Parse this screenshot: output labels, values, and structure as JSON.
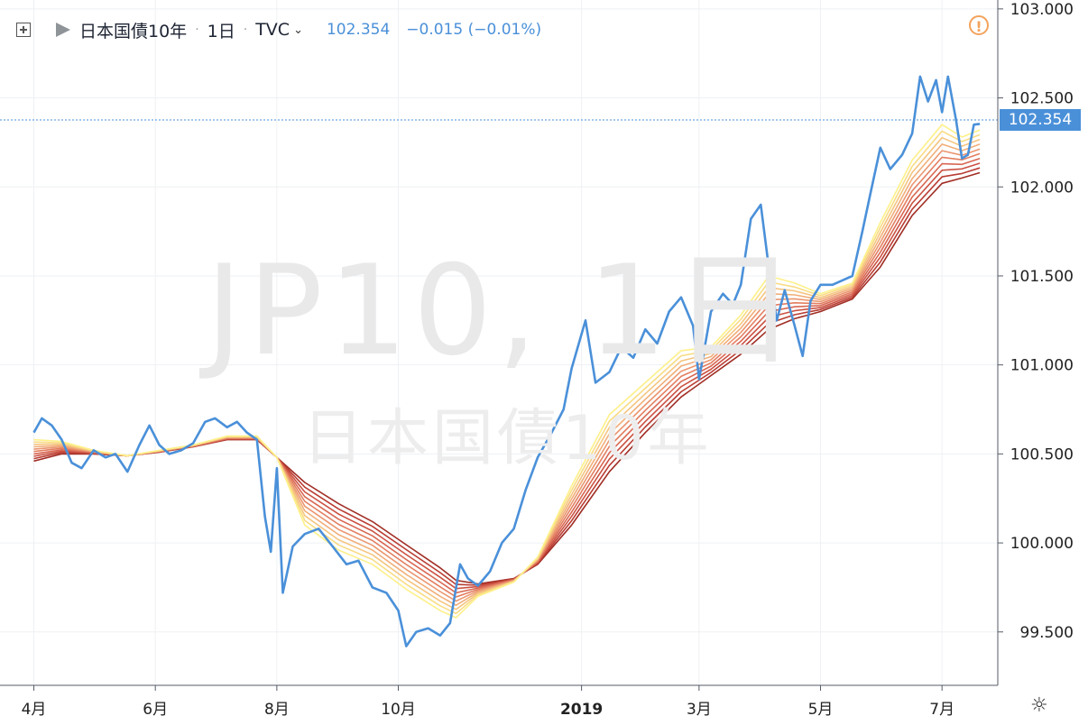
{
  "legend": {
    "symbol": "日本国債10年",
    "interval": "1日",
    "source": "TVC",
    "last": "102.354",
    "change": "−0.015 (−0.01%)",
    "add_icon": "plus-square-icon",
    "flag_icon": "flag-icon",
    "chevron_icon": "chevron-down-icon"
  },
  "watermark": {
    "line1": "JP10, 1日",
    "line2": "日本国債10年"
  },
  "warning_icon": {
    "name": "alert-circle-icon",
    "glyph": "!"
  },
  "settings_icon": {
    "name": "gear-icon",
    "glyph": "☼"
  },
  "last_price_label": "102.354",
  "colors": {
    "price_line": "#4a90d9",
    "grid": "#eef1f4",
    "axis": "#555b66",
    "ribbon": [
      "#fdf08a",
      "#f9dc84",
      "#f5c581",
      "#f1ae79",
      "#eb9670",
      "#e37e60",
      "#d86752",
      "#cb5243",
      "#b93d33",
      "#a02d24"
    ]
  },
  "chart_data": {
    "type": "line",
    "title": "",
    "xlabel": "",
    "ylabel": "",
    "ylim": [
      99.2,
      103.05
    ],
    "y_ticks": [
      "103.000",
      "102.500",
      "102.000",
      "101.500",
      "101.000",
      "100.500",
      "100.000",
      "99.500"
    ],
    "x_ticks": [
      "4月",
      "6月",
      "8月",
      "10月",
      "2019",
      "3月",
      "5月",
      "7月"
    ],
    "grid": true,
    "series": [
      {
        "name": "",
        "role": "price",
        "values": [
          {
            "x": "2018-04-01",
            "y": 100.62
          },
          {
            "x": "2018-04-05",
            "y": 100.7
          },
          {
            "x": "2018-04-10",
            "y": 100.66
          },
          {
            "x": "2018-04-15",
            "y": 100.58
          },
          {
            "x": "2018-04-20",
            "y": 100.45
          },
          {
            "x": "2018-04-25",
            "y": 100.42
          },
          {
            "x": "2018-05-01",
            "y": 100.52
          },
          {
            "x": "2018-05-07",
            "y": 100.48
          },
          {
            "x": "2018-05-12",
            "y": 100.5
          },
          {
            "x": "2018-05-18",
            "y": 100.4
          },
          {
            "x": "2018-05-24",
            "y": 100.55
          },
          {
            "x": "2018-05-29",
            "y": 100.66
          },
          {
            "x": "2018-06-03",
            "y": 100.55
          },
          {
            "x": "2018-06-08",
            "y": 100.5
          },
          {
            "x": "2018-06-14",
            "y": 100.52
          },
          {
            "x": "2018-06-20",
            "y": 100.56
          },
          {
            "x": "2018-06-26",
            "y": 100.68
          },
          {
            "x": "2018-07-01",
            "y": 100.7
          },
          {
            "x": "2018-07-07",
            "y": 100.65
          },
          {
            "x": "2018-07-12",
            "y": 100.68
          },
          {
            "x": "2018-07-17",
            "y": 100.62
          },
          {
            "x": "2018-07-22",
            "y": 100.58
          },
          {
            "x": "2018-07-26",
            "y": 100.15
          },
          {
            "x": "2018-07-29",
            "y": 99.95
          },
          {
            "x": "2018-08-01",
            "y": 100.42
          },
          {
            "x": "2018-08-04",
            "y": 99.72
          },
          {
            "x": "2018-08-09",
            "y": 99.98
          },
          {
            "x": "2018-08-15",
            "y": 100.05
          },
          {
            "x": "2018-08-22",
            "y": 100.08
          },
          {
            "x": "2018-08-29",
            "y": 99.98
          },
          {
            "x": "2018-09-05",
            "y": 99.88
          },
          {
            "x": "2018-09-11",
            "y": 99.9
          },
          {
            "x": "2018-09-18",
            "y": 99.75
          },
          {
            "x": "2018-09-25",
            "y": 99.72
          },
          {
            "x": "2018-10-01",
            "y": 99.62
          },
          {
            "x": "2018-10-05",
            "y": 99.42
          },
          {
            "x": "2018-10-10",
            "y": 99.5
          },
          {
            "x": "2018-10-16",
            "y": 99.52
          },
          {
            "x": "2018-10-22",
            "y": 99.48
          },
          {
            "x": "2018-10-27",
            "y": 99.55
          },
          {
            "x": "2018-11-01",
            "y": 99.88
          },
          {
            "x": "2018-11-05",
            "y": 99.8
          },
          {
            "x": "2018-11-10",
            "y": 99.76
          },
          {
            "x": "2018-11-16",
            "y": 99.84
          },
          {
            "x": "2018-11-22",
            "y": 100.0
          },
          {
            "x": "2018-11-28",
            "y": 100.08
          },
          {
            "x": "2018-12-04",
            "y": 100.3
          },
          {
            "x": "2018-12-10",
            "y": 100.48
          },
          {
            "x": "2018-12-17",
            "y": 100.62
          },
          {
            "x": "2018-12-23",
            "y": 100.75
          },
          {
            "x": "2018-12-27",
            "y": 100.98
          },
          {
            "x": "2019-01-03",
            "y": 101.25
          },
          {
            "x": "2019-01-08",
            "y": 100.9
          },
          {
            "x": "2019-01-15",
            "y": 100.96
          },
          {
            "x": "2019-01-21",
            "y": 101.1
          },
          {
            "x": "2019-01-27",
            "y": 101.04
          },
          {
            "x": "2019-02-02",
            "y": 101.2
          },
          {
            "x": "2019-02-08",
            "y": 101.12
          },
          {
            "x": "2019-02-14",
            "y": 101.3
          },
          {
            "x": "2019-02-20",
            "y": 101.38
          },
          {
            "x": "2019-02-26",
            "y": 101.22
          },
          {
            "x": "2019-03-01",
            "y": 100.92
          },
          {
            "x": "2019-03-07",
            "y": 101.3
          },
          {
            "x": "2019-03-13",
            "y": 101.4
          },
          {
            "x": "2019-03-18",
            "y": 101.34
          },
          {
            "x": "2019-03-22",
            "y": 101.45
          },
          {
            "x": "2019-03-27",
            "y": 101.82
          },
          {
            "x": "2019-04-01",
            "y": 101.9
          },
          {
            "x": "2019-04-05",
            "y": 101.55
          },
          {
            "x": "2019-04-09",
            "y": 101.25
          },
          {
            "x": "2019-04-13",
            "y": 101.42
          },
          {
            "x": "2019-04-18",
            "y": 101.22
          },
          {
            "x": "2019-04-22",
            "y": 101.05
          },
          {
            "x": "2019-04-26",
            "y": 101.36
          },
          {
            "x": "2019-05-01",
            "y": 101.45
          },
          {
            "x": "2019-05-07",
            "y": 101.45
          },
          {
            "x": "2019-05-13",
            "y": 101.48
          },
          {
            "x": "2019-05-17",
            "y": 101.5
          },
          {
            "x": "2019-05-22",
            "y": 101.75
          },
          {
            "x": "2019-05-26",
            "y": 101.96
          },
          {
            "x": "2019-05-31",
            "y": 102.22
          },
          {
            "x": "2019-06-05",
            "y": 102.1
          },
          {
            "x": "2019-06-11",
            "y": 102.18
          },
          {
            "x": "2019-06-16",
            "y": 102.3
          },
          {
            "x": "2019-06-20",
            "y": 102.62
          },
          {
            "x": "2019-06-24",
            "y": 102.48
          },
          {
            "x": "2019-06-28",
            "y": 102.6
          },
          {
            "x": "2019-07-01",
            "y": 102.42
          },
          {
            "x": "2019-07-04",
            "y": 102.62
          },
          {
            "x": "2019-07-08",
            "y": 102.38
          },
          {
            "x": "2019-07-11",
            "y": 102.16
          },
          {
            "x": "2019-07-14",
            "y": 102.18
          },
          {
            "x": "2019-07-17",
            "y": 102.35
          },
          {
            "x": "2019-07-20",
            "y": 102.354
          }
        ]
      },
      {
        "name": "",
        "role": "fast_ma",
        "values": [
          {
            "x": "2018-04-01",
            "y": 100.58
          },
          {
            "x": "2018-04-15",
            "y": 100.57
          },
          {
            "x": "2018-05-01",
            "y": 100.52
          },
          {
            "x": "2018-05-18",
            "y": 100.49
          },
          {
            "x": "2018-06-03",
            "y": 100.52
          },
          {
            "x": "2018-06-20",
            "y": 100.55
          },
          {
            "x": "2018-07-07",
            "y": 100.6
          },
          {
            "x": "2018-07-22",
            "y": 100.6
          },
          {
            "x": "2018-08-01",
            "y": 100.48
          },
          {
            "x": "2018-08-15",
            "y": 100.1
          },
          {
            "x": "2018-09-01",
            "y": 99.96
          },
          {
            "x": "2018-09-18",
            "y": 99.88
          },
          {
            "x": "2018-10-05",
            "y": 99.74
          },
          {
            "x": "2018-10-22",
            "y": 99.62
          },
          {
            "x": "2018-10-30",
            "y": 99.58
          },
          {
            "x": "2018-11-10",
            "y": 99.7
          },
          {
            "x": "2018-11-28",
            "y": 99.78
          },
          {
            "x": "2018-12-10",
            "y": 99.92
          },
          {
            "x": "2018-12-27",
            "y": 100.32
          },
          {
            "x": "2019-01-15",
            "y": 100.72
          },
          {
            "x": "2019-02-02",
            "y": 100.9
          },
          {
            "x": "2019-02-20",
            "y": 101.08
          },
          {
            "x": "2019-03-07",
            "y": 101.1
          },
          {
            "x": "2019-03-22",
            "y": 101.28
          },
          {
            "x": "2019-04-05",
            "y": 101.5
          },
          {
            "x": "2019-04-18",
            "y": 101.46
          },
          {
            "x": "2019-05-01",
            "y": 101.4
          },
          {
            "x": "2019-05-17",
            "y": 101.46
          },
          {
            "x": "2019-05-31",
            "y": 101.8
          },
          {
            "x": "2019-06-16",
            "y": 102.15
          },
          {
            "x": "2019-07-01",
            "y": 102.35
          },
          {
            "x": "2019-07-11",
            "y": 102.28
          },
          {
            "x": "2019-07-20",
            "y": 102.32
          }
        ]
      },
      {
        "name": "",
        "role": "slow_ma",
        "values": [
          {
            "x": "2018-04-01",
            "y": 100.46
          },
          {
            "x": "2018-04-15",
            "y": 100.5
          },
          {
            "x": "2018-05-01",
            "y": 100.5
          },
          {
            "x": "2018-05-18",
            "y": 100.49
          },
          {
            "x": "2018-06-03",
            "y": 100.51
          },
          {
            "x": "2018-06-20",
            "y": 100.54
          },
          {
            "x": "2018-07-07",
            "y": 100.58
          },
          {
            "x": "2018-07-22",
            "y": 100.58
          },
          {
            "x": "2018-08-01",
            "y": 100.48
          },
          {
            "x": "2018-08-15",
            "y": 100.34
          },
          {
            "x": "2018-09-01",
            "y": 100.22
          },
          {
            "x": "2018-09-18",
            "y": 100.12
          },
          {
            "x": "2018-10-05",
            "y": 99.99
          },
          {
            "x": "2018-10-22",
            "y": 99.86
          },
          {
            "x": "2018-10-30",
            "y": 99.79
          },
          {
            "x": "2018-11-10",
            "y": 99.77
          },
          {
            "x": "2018-11-28",
            "y": 99.8
          },
          {
            "x": "2018-12-10",
            "y": 99.88
          },
          {
            "x": "2018-12-27",
            "y": 100.1
          },
          {
            "x": "2019-01-15",
            "y": 100.4
          },
          {
            "x": "2019-02-02",
            "y": 100.62
          },
          {
            "x": "2019-02-20",
            "y": 100.82
          },
          {
            "x": "2019-03-07",
            "y": 100.94
          },
          {
            "x": "2019-03-22",
            "y": 101.06
          },
          {
            "x": "2019-04-05",
            "y": 101.2
          },
          {
            "x": "2019-04-18",
            "y": 101.26
          },
          {
            "x": "2019-05-01",
            "y": 101.3
          },
          {
            "x": "2019-05-17",
            "y": 101.37
          },
          {
            "x": "2019-05-31",
            "y": 101.55
          },
          {
            "x": "2019-06-16",
            "y": 101.84
          },
          {
            "x": "2019-07-01",
            "y": 102.02
          },
          {
            "x": "2019-07-11",
            "y": 102.05
          },
          {
            "x": "2019-07-20",
            "y": 102.08
          }
        ]
      }
    ],
    "ribbon_count": 10
  }
}
